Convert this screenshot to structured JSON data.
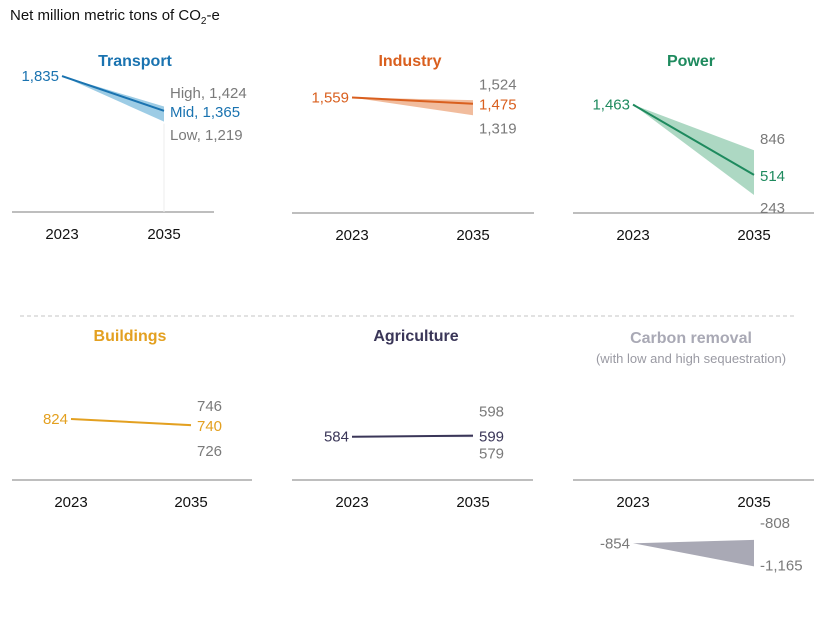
{
  "header": {
    "title_prefix": "Net million metric tons of CO",
    "title_sub": "2",
    "title_suffix": "-e"
  },
  "chart_data": {
    "type": "area",
    "title": "Net million metric tons of CO2-e",
    "x": [
      "2023",
      "2035"
    ],
    "panels": [
      {
        "name": "Transport",
        "color": "#1a73b0",
        "band_color": "#8cc3e0",
        "start": 1835,
        "mid": 1365,
        "high": 1424,
        "low": 1219,
        "labels": {
          "start": "1,835",
          "high": "High, 1,424",
          "mid": "Mid, 1,365",
          "low": "Low, 1,219"
        }
      },
      {
        "name": "Industry",
        "color": "#d95f1e",
        "band_color": "#efb08c",
        "start": 1559,
        "mid": 1475,
        "high": 1524,
        "low": 1319,
        "labels": {
          "start": "1,559",
          "high": "1,524",
          "mid": "1,475",
          "low": "1,319"
        }
      },
      {
        "name": "Power",
        "color": "#1e8a5e",
        "band_color": "#9fd1b9",
        "start": 1463,
        "mid": 514,
        "high": 846,
        "low": 243,
        "labels": {
          "start": "1,463",
          "high": "846",
          "mid": "514",
          "low": "243"
        }
      },
      {
        "name": "Buildings",
        "color": "#e3a020",
        "band_color": "#f2d08e",
        "start": 824,
        "mid": 740,
        "high": 746,
        "low": 726,
        "labels": {
          "start": "824",
          "high": "746",
          "mid": "740",
          "low": "726"
        }
      },
      {
        "name": "Agriculture",
        "color": "#3a3658",
        "band_color": "#a9a7bb",
        "start": 584,
        "mid": 599,
        "high": 598,
        "low": 579,
        "labels": {
          "start": "584",
          "high": "598",
          "mid": "599",
          "low": "579"
        }
      },
      {
        "name": "Carbon removal",
        "subtitle": "(with low and high sequestration)",
        "color": "#a9a9b5",
        "band_color": "#a9a9b5",
        "start": -854,
        "mid": null,
        "high": -808,
        "low": -1165,
        "labels": {
          "start": "-854",
          "high": "-808",
          "mid": "",
          "low": "-1,165"
        }
      }
    ],
    "label_color_range": "#7a7a7a",
    "grid": false
  }
}
